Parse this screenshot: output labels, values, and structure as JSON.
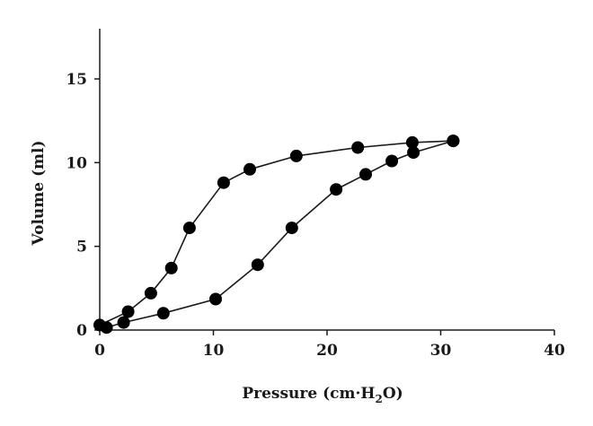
{
  "chart_data": {
    "type": "line",
    "title": "",
    "xlabel": {
      "prefix": "Pressure (cm·H",
      "sub": "2",
      "suffix": "O)"
    },
    "ylabel": "Volume (ml)",
    "xlim": [
      0,
      40
    ],
    "ylim": [
      0,
      18
    ],
    "xticks": [
      0,
      10,
      20,
      30,
      40
    ],
    "yticks": [
      0,
      5,
      10,
      15
    ],
    "grid": false,
    "legend": "none",
    "series": [
      {
        "points": [
          [
            0,
            0.3
          ],
          [
            2.5,
            1.1
          ],
          [
            4.5,
            2.2
          ],
          [
            6.3,
            3.7
          ],
          [
            7.9,
            6.1
          ],
          [
            10.9,
            8.8
          ],
          [
            13.2,
            9.6
          ],
          [
            17.3,
            10.4
          ],
          [
            22.7,
            10.9
          ],
          [
            27.5,
            11.2
          ],
          [
            31.1,
            11.3
          ]
        ]
      },
      {
        "points": [
          [
            0.6,
            0.15
          ],
          [
            2.1,
            0.45
          ],
          [
            5.6,
            1.0
          ],
          [
            10.2,
            1.85
          ],
          [
            13.9,
            3.9
          ],
          [
            16.9,
            6.1
          ],
          [
            20.8,
            8.4
          ],
          [
            23.4,
            9.3
          ],
          [
            25.7,
            10.1
          ],
          [
            27.6,
            10.6
          ],
          [
            31.1,
            11.3
          ]
        ]
      }
    ],
    "colors": {
      "line": "#1a1a1a",
      "marker": "#000000"
    }
  }
}
